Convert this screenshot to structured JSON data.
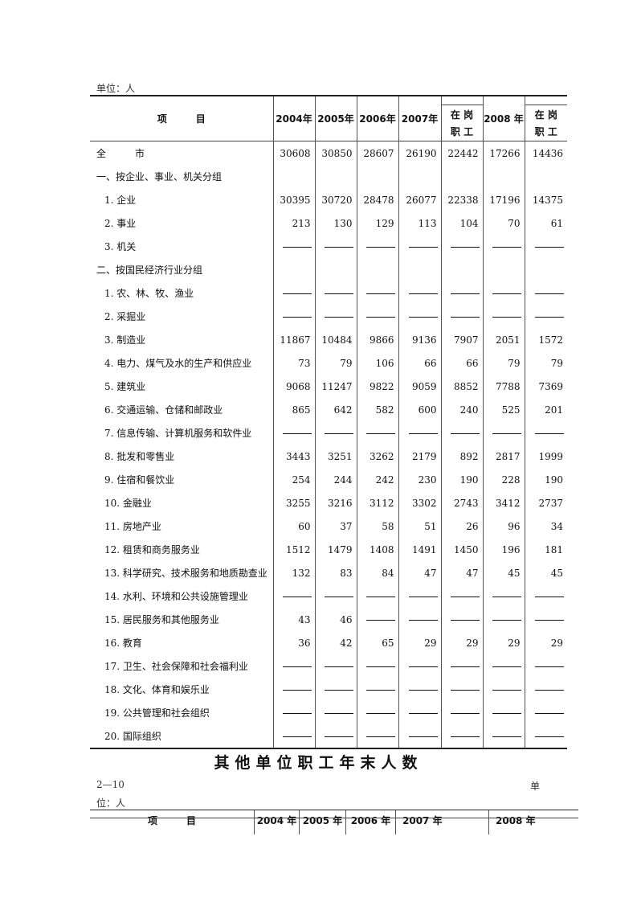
{
  "unit_label": "单位：人",
  "table1": {
    "header": {
      "item": "项　　　目",
      "columns": [
        "2004年",
        "2005年",
        "2006年",
        "2007年",
        "在 岗\n职 工",
        "2008 年",
        "在 岗\n职 工"
      ],
      "onjob_line1": "在 岗",
      "onjob_line2": "职 工"
    },
    "rows": [
      {
        "label": "全　　　市",
        "indent": false,
        "values": [
          "30608",
          "30850",
          "28607",
          "26190",
          "22442",
          "17266",
          "14436"
        ]
      },
      {
        "label": "一、按企业、事业、机关分组",
        "indent": false,
        "values": [
          "",
          "",
          "",
          "",
          "",
          "",
          ""
        ]
      },
      {
        "label": "1. 企业",
        "indent": true,
        "values": [
          "30395",
          "30720",
          "28478",
          "26077",
          "22338",
          "17196",
          "14375"
        ]
      },
      {
        "label": "2. 事业",
        "indent": true,
        "values": [
          "213",
          "130",
          "129",
          "113",
          "104",
          "70",
          "61"
        ]
      },
      {
        "label": "3. 机关",
        "indent": true,
        "values": [
          "—",
          "—",
          "—",
          "—",
          "—",
          "—",
          "—"
        ]
      },
      {
        "label": "二、按国民经济行业分组",
        "indent": false,
        "values": [
          "",
          "",
          "",
          "",
          "",
          "",
          ""
        ]
      },
      {
        "label": "1. 农、林、牧、渔业",
        "indent": true,
        "values": [
          "—",
          "—",
          "—",
          "—",
          "—",
          "—",
          "—"
        ]
      },
      {
        "label": "2. 采掘业",
        "indent": true,
        "values": [
          "—",
          "—",
          "—",
          "—",
          "—",
          "—",
          "—"
        ]
      },
      {
        "label": "3. 制造业",
        "indent": true,
        "values": [
          "11867",
          "10484",
          "9866",
          "9136",
          "7907",
          "2051",
          "1572"
        ]
      },
      {
        "label": "4. 电力、煤气及水的生产和供应业",
        "indent": true,
        "values": [
          "73",
          "79",
          "106",
          "66",
          "66",
          "79",
          "79"
        ]
      },
      {
        "label": "5. 建筑业",
        "indent": true,
        "values": [
          "9068",
          "11247",
          "9822",
          "9059",
          "8852",
          "7788",
          "7369"
        ]
      },
      {
        "label": "6. 交通运输、仓储和邮政业",
        "indent": true,
        "values": [
          "865",
          "642",
          "582",
          "600",
          "240",
          "525",
          "201"
        ]
      },
      {
        "label": "7. 信息传输、计算机服务和软件业",
        "indent": true,
        "values": [
          "—",
          "—",
          "—",
          "—",
          "—",
          "—",
          "—"
        ]
      },
      {
        "label": "8. 批发和零售业",
        "indent": true,
        "values": [
          "3443",
          "3251",
          "3262",
          "2179",
          "892",
          "2817",
          "1999"
        ]
      },
      {
        "label": "9. 住宿和餐饮业",
        "indent": true,
        "values": [
          "254",
          "244",
          "242",
          "230",
          "190",
          "228",
          "190"
        ]
      },
      {
        "label": "10. 金融业",
        "indent": true,
        "values": [
          "3255",
          "3216",
          "3112",
          "3302",
          "2743",
          "3412",
          "2737"
        ]
      },
      {
        "label": "11. 房地产业",
        "indent": true,
        "values": [
          "60",
          "37",
          "58",
          "51",
          "26",
          "96",
          "34"
        ]
      },
      {
        "label": "12. 租赁和商务服务业",
        "indent": true,
        "values": [
          "1512",
          "1479",
          "1408",
          "1491",
          "1450",
          "196",
          "181"
        ]
      },
      {
        "label": "13. 科学研究、技术服务和地质勘查业",
        "indent": true,
        "values": [
          "132",
          "83",
          "84",
          "47",
          "47",
          "45",
          "45"
        ]
      },
      {
        "label": "14. 水利、环境和公共设施管理业",
        "indent": true,
        "values": [
          "—",
          "—",
          "—",
          "—",
          "—",
          "—",
          "—"
        ]
      },
      {
        "label": "15. 居民服务和其他服务业",
        "indent": true,
        "values": [
          "43",
          "46",
          "—",
          "—",
          "—",
          "—",
          "—"
        ]
      },
      {
        "label": "16. 教育",
        "indent": true,
        "values": [
          "36",
          "42",
          "65",
          "29",
          "29",
          "29",
          "29"
        ]
      },
      {
        "label": "17. 卫生、社会保障和社会福利业",
        "indent": true,
        "values": [
          "—",
          "—",
          "—",
          "—",
          "—",
          "—",
          "—"
        ]
      },
      {
        "label": "18. 文化、体育和娱乐业",
        "indent": true,
        "values": [
          "—",
          "—",
          "—",
          "—",
          "—",
          "—",
          "—"
        ]
      },
      {
        "label": "19. 公共管理和社会组织",
        "indent": true,
        "values": [
          "—",
          "—",
          "—",
          "—",
          "—",
          "—",
          "—"
        ]
      },
      {
        "label": "20. 国际组织",
        "indent": true,
        "values": [
          "—",
          "—",
          "—",
          "—",
          "—",
          "—",
          "—"
        ]
      }
    ]
  },
  "section2": {
    "title": "其他单位职工年末人数",
    "table_code": "2—10",
    "unit_part1": "单",
    "unit_part2": "位：人",
    "header": {
      "item": "项　　　目",
      "columns": [
        "2004 年",
        "2005 年",
        "2006 年",
        "2007 年",
        "2008 年"
      ]
    }
  }
}
